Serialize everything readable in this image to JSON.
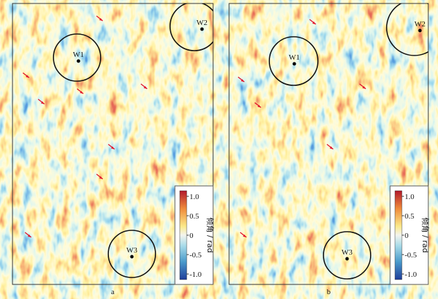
{
  "panels": [
    {
      "label": "a",
      "wells": [
        "W1",
        "W2",
        "W3"
      ],
      "colorbar": {
        "ticks": [
          "1.0",
          "0.5",
          "0",
          "-0.5",
          "-1.0"
        ],
        "title": "倾角 / rad"
      }
    },
    {
      "label": "b",
      "wells": [
        "W1",
        "W2",
        "W3"
      ],
      "colorbar": {
        "ticks": [
          "1.0",
          "0.5",
          "0",
          "-0.5",
          "-1.0"
        ],
        "title": "倾角 / rad"
      }
    }
  ]
}
